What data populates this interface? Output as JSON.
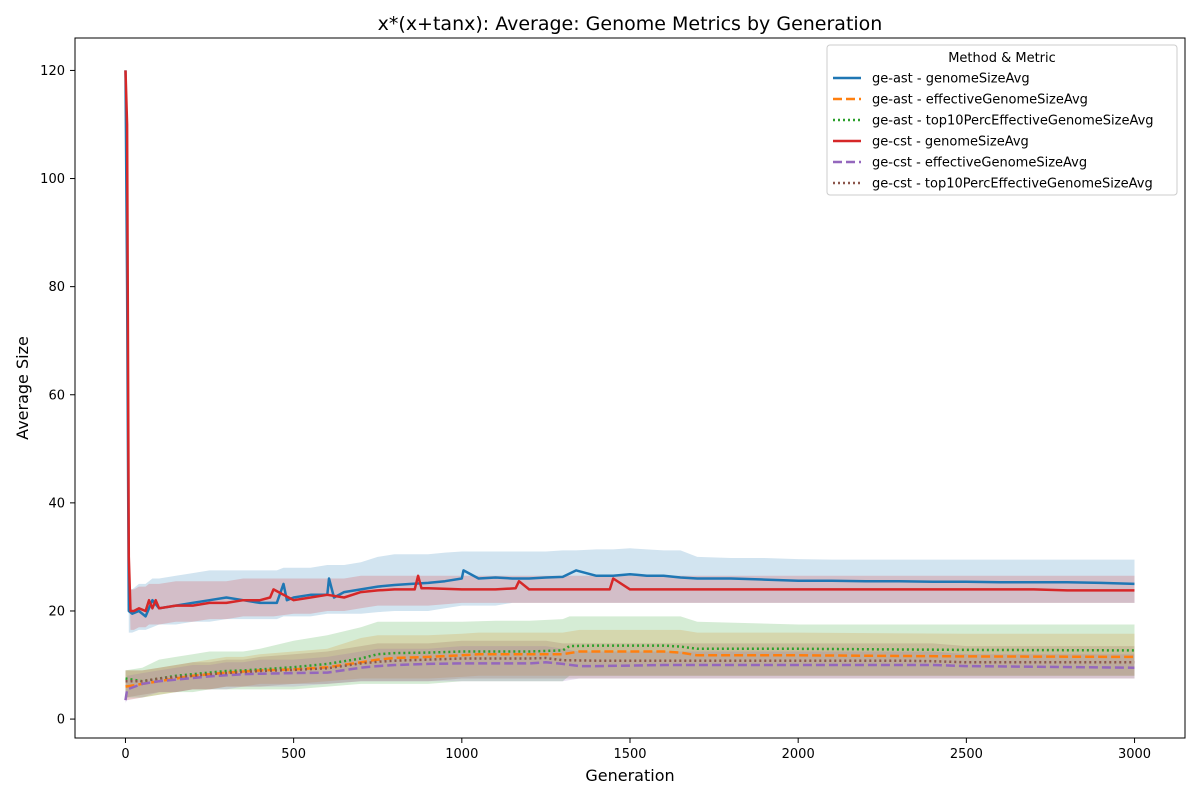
{
  "chart_data": {
    "type": "line",
    "title": "x*(x+tanx): Average: Genome Metrics by Generation",
    "xlabel": "Generation",
    "ylabel": "Average Size",
    "xlim": [
      -150,
      3150
    ],
    "ylim": [
      -3.5,
      126
    ],
    "xticks": [
      0,
      500,
      1000,
      1500,
      2000,
      2500,
      3000
    ],
    "yticks": [
      0,
      20,
      40,
      60,
      80,
      100,
      120
    ],
    "grid": false,
    "legend": {
      "title": "Method & Metric",
      "placement": "top-right"
    },
    "series": [
      {
        "name": "ge-ast - genomeSizeAvg",
        "color": "#1f77b4",
        "dash": "solid",
        "x": [
          0,
          5,
          10,
          20,
          40,
          60,
          80,
          100,
          150,
          200,
          250,
          300,
          350,
          400,
          450,
          470,
          480,
          500,
          550,
          600,
          605,
          620,
          650,
          700,
          750,
          800,
          850,
          900,
          950,
          1000,
          1005,
          1050,
          1100,
          1150,
          1200,
          1250,
          1300,
          1340,
          1400,
          1450,
          1500,
          1550,
          1600,
          1650,
          1700,
          1800,
          1900,
          2000,
          2100,
          2200,
          2300,
          2400,
          2500,
          2600,
          2700,
          2800,
          2900,
          3000
        ],
        "y": [
          120,
          80,
          20,
          19.5,
          20,
          19,
          22,
          20.5,
          21,
          21.5,
          22,
          22.5,
          22,
          21.5,
          21.5,
          25,
          22,
          22.5,
          23,
          23,
          26,
          22.5,
          23.5,
          24,
          24.5,
          24.8,
          25,
          25.2,
          25.5,
          26,
          27.5,
          26,
          26.2,
          26,
          26,
          26.2,
          26.3,
          27.5,
          26.5,
          26.5,
          26.8,
          26.5,
          26.5,
          26.2,
          26,
          26,
          25.8,
          25.6,
          25.6,
          25.5,
          25.5,
          25.4,
          25.4,
          25.3,
          25.3,
          25.3,
          25.2,
          25
        ],
        "band_upper": [
          120,
          80,
          24,
          24,
          25,
          25,
          26,
          26,
          26.5,
          27,
          27.5,
          27.5,
          27.5,
          27.5,
          27.5,
          28,
          28,
          28,
          28,
          28.5,
          28.5,
          28.5,
          28.5,
          29,
          30,
          30.5,
          30.5,
          30.5,
          30.8,
          31,
          31,
          31,
          31,
          31,
          31,
          31,
          31.2,
          31.2,
          31.4,
          31.4,
          31.6,
          31.4,
          31.2,
          31.2,
          30,
          29.8,
          29.8,
          29.6,
          29.5,
          29.5,
          29.5,
          29.5,
          29.5,
          29.5,
          29.5,
          29.5,
          29.5,
          29.5
        ],
        "band_lower": [
          120,
          80,
          16,
          16,
          16.5,
          16.5,
          17,
          17.5,
          17.5,
          18,
          18,
          18.5,
          18.5,
          18.5,
          18.5,
          19,
          19,
          19,
          19,
          19.5,
          19.5,
          19.5,
          19.5,
          19.5,
          19.8,
          20,
          20,
          20,
          20.5,
          21,
          21,
          21,
          21,
          21.5,
          21.5,
          21.5,
          21.5,
          21.5,
          21.5,
          21.5,
          21.5,
          21.5,
          21.5,
          21.5,
          21.5,
          21.5,
          21.5,
          21.5,
          21.5,
          21.5,
          21.5,
          21.5,
          21.5,
          21.5,
          21.5,
          21.5,
          21.5,
          21.5
        ]
      },
      {
        "name": "ge-ast - effectiveGenomeSizeAvg",
        "color": "#ff7f0e",
        "dash": "dashed",
        "x": [
          0,
          50,
          100,
          150,
          200,
          250,
          300,
          350,
          400,
          500,
          600,
          700,
          750,
          800,
          900,
          1000,
          1050,
          1100,
          1200,
          1300,
          1350,
          1400,
          1500,
          1600,
          1650,
          1700,
          2000,
          2500,
          3000
        ],
        "y": [
          6,
          6.5,
          7,
          7.5,
          8,
          8.3,
          8.6,
          8.8,
          9,
          9.2,
          9.6,
          10.5,
          11,
          11.3,
          11.5,
          11.8,
          12,
          12,
          12,
          12,
          12.5,
          12.5,
          12.5,
          12.5,
          12.3,
          11.8,
          11.8,
          11.6,
          11.5
        ],
        "band_upper": [
          9,
          9,
          9.5,
          10,
          10.5,
          11,
          11.5,
          11.5,
          12,
          12.5,
          13,
          15,
          15.5,
          15.5,
          15.5,
          15.8,
          16,
          16,
          16,
          16,
          16.5,
          16.5,
          16.5,
          16.5,
          16.5,
          16,
          16,
          15.8,
          15.8
        ],
        "band_lower": [
          3.5,
          4,
          4.5,
          5,
          5.5,
          5.5,
          6,
          6,
          6.5,
          6.5,
          7,
          7.5,
          7.5,
          7.5,
          7.5,
          7.8,
          8,
          8,
          8,
          8,
          8,
          8,
          8,
          8,
          8,
          8,
          8,
          8,
          8
        ]
      },
      {
        "name": "ge-ast - top10PercEffectiveGenomeSizeAvg",
        "color": "#2ca02c",
        "dash": "dotted",
        "x": [
          0,
          50,
          100,
          150,
          200,
          250,
          300,
          350,
          400,
          500,
          600,
          700,
          750,
          800,
          900,
          1000,
          1100,
          1200,
          1300,
          1320,
          1400,
          1500,
          1600,
          1650,
          1700,
          2000,
          2500,
          3000
        ],
        "y": [
          7.5,
          7,
          7.5,
          8,
          8.3,
          8.6,
          8.9,
          9,
          9.2,
          9.6,
          10.2,
          11.2,
          12,
          12.2,
          12.3,
          12.5,
          12.5,
          12.5,
          12.7,
          13.5,
          13.6,
          13.6,
          13.6,
          13.4,
          13,
          13,
          12.8,
          12.7
        ],
        "band_upper": [
          9,
          9.5,
          11,
          11.5,
          12,
          12.5,
          12.5,
          12.5,
          13,
          14.5,
          15.5,
          17,
          18,
          18,
          18,
          18,
          18.2,
          18.2,
          18.5,
          19,
          19,
          19,
          19,
          19,
          18,
          17.5,
          17.5,
          17.5
        ],
        "band_lower": [
          4,
          4,
          4.5,
          5,
          5,
          5.5,
          5.5,
          5.5,
          5.5,
          5.5,
          6,
          6.5,
          6.5,
          6.5,
          6.5,
          7,
          7,
          7,
          7,
          8,
          8,
          8,
          8,
          8,
          8,
          8,
          8,
          8
        ]
      },
      {
        "name": "ge-cst - genomeSizeAvg",
        "color": "#d62728",
        "dash": "solid",
        "x": [
          0,
          5,
          10,
          15,
          25,
          40,
          60,
          70,
          80,
          90,
          100,
          150,
          200,
          250,
          300,
          350,
          400,
          430,
          440,
          500,
          550,
          600,
          650,
          700,
          750,
          800,
          860,
          870,
          880,
          900,
          1000,
          1100,
          1160,
          1170,
          1200,
          1300,
          1400,
          1440,
          1450,
          1500,
          1600,
          1700,
          1800,
          1900,
          2000,
          2100,
          2200,
          2300,
          2400,
          2500,
          2600,
          2700,
          2800,
          2900,
          3000
        ],
        "y": [
          120,
          110,
          30,
          20,
          20,
          20.5,
          20,
          22,
          20.5,
          22,
          20.5,
          21,
          21,
          21.5,
          21.5,
          22,
          22,
          22.5,
          24,
          22,
          22.5,
          23,
          22.5,
          23.5,
          23.8,
          24,
          24,
          26.5,
          24.2,
          24.2,
          24,
          24,
          24.2,
          25.5,
          24,
          24,
          24,
          24,
          26,
          24,
          24,
          24,
          24,
          24,
          24,
          24,
          24,
          24,
          24,
          24,
          24,
          24,
          23.8,
          23.8,
          23.8
        ],
        "band_upper": [
          120,
          110,
          30,
          24,
          24,
          24.5,
          24.5,
          25,
          25,
          25,
          25,
          25.5,
          25.5,
          25.5,
          25.5,
          26,
          26,
          26,
          26,
          26,
          26,
          26,
          26,
          26.5,
          26.5,
          26.5,
          26.5,
          26.5,
          26.5,
          26.5,
          26.5,
          26.5,
          26.5,
          26.5,
          26.5,
          26.5,
          26.5,
          26.5,
          26.5,
          26.5,
          26.5,
          26.5,
          26.5,
          26.5,
          26.5,
          26.5,
          26.5,
          26.5,
          26.5,
          26.5,
          26.5,
          26.5,
          26.5,
          26.5,
          26.5
        ],
        "band_lower": [
          120,
          110,
          30,
          16.5,
          16.5,
          17,
          17,
          17.5,
          17.5,
          17.5,
          17.5,
          18,
          18,
          18.5,
          18.5,
          19,
          19,
          19,
          19,
          19.5,
          19.5,
          20,
          20,
          20.5,
          21,
          21,
          21,
          21,
          21,
          21,
          21.5,
          21.5,
          21.5,
          21.5,
          21.5,
          21.5,
          21.5,
          21.5,
          21.5,
          21.5,
          21.5,
          21.5,
          21.5,
          21.5,
          21.5,
          21.5,
          21.5,
          21.5,
          21.5,
          21.5,
          21.5,
          21.5,
          21.5,
          21.5,
          21.5
        ]
      },
      {
        "name": "ge-cst - effectiveGenomeSizeAvg",
        "color": "#9467bd",
        "dash": "dashed",
        "x": [
          0,
          5,
          50,
          100,
          150,
          200,
          250,
          300,
          350,
          400,
          500,
          600,
          700,
          750,
          800,
          900,
          1000,
          1100,
          1200,
          1250,
          1300,
          1350,
          1400,
          1500,
          1600,
          1700,
          2000,
          2300,
          2400,
          2500,
          3000
        ],
        "y": [
          3.5,
          5.5,
          6.5,
          7,
          7.3,
          7.6,
          7.9,
          8.1,
          8.3,
          8.4,
          8.5,
          8.6,
          9.5,
          9.8,
          10,
          10.2,
          10.3,
          10.3,
          10.3,
          10.5,
          10.2,
          9.8,
          9.8,
          9.9,
          10,
          10,
          10,
          10,
          10,
          9.8,
          9.5
        ],
        "band_upper": [
          6,
          8,
          8.5,
          9,
          9.5,
          10,
          10,
          10.5,
          10.5,
          11,
          11,
          11.5,
          12.5,
          13,
          13,
          13,
          13.5,
          13.5,
          13.5,
          13.5,
          13,
          12.5,
          12.5,
          12.5,
          12.5,
          12.5,
          12.5,
          12.5,
          12.5,
          12,
          12
        ],
        "band_lower": [
          3,
          3.5,
          4,
          5,
          5,
          5.5,
          5.5,
          5.5,
          6,
          6,
          6,
          6.5,
          7,
          7,
          7,
          7,
          7,
          7,
          7,
          7,
          7,
          7.5,
          7.5,
          7.5,
          7.5,
          7.5,
          7.5,
          7.5,
          7.5,
          7.5,
          7.5
        ]
      },
      {
        "name": "ge-cst - top10PercEffectiveGenomeSizeAvg",
        "color": "#8c564b",
        "dash": "dotted",
        "x": [
          0,
          50,
          100,
          150,
          200,
          250,
          300,
          350,
          400,
          500,
          600,
          700,
          750,
          800,
          900,
          1000,
          1100,
          1200,
          1250,
          1300,
          1400,
          1500,
          1600,
          1700,
          2000,
          2300,
          2400,
          2500,
          3000
        ],
        "y": [
          7,
          7,
          7.5,
          7.8,
          8,
          8.3,
          8.5,
          8.7,
          8.9,
          9.1,
          9.4,
          10.3,
          10.6,
          10.8,
          11,
          11.2,
          11.2,
          11.2,
          11.3,
          10.9,
          10.8,
          10.8,
          10.8,
          10.8,
          10.8,
          10.8,
          10.7,
          10.5,
          10.5
        ],
        "band_upper": [
          9,
          9,
          9.5,
          10,
          10.5,
          10.5,
          11,
          11,
          11.5,
          12,
          12.5,
          13.5,
          14,
          14,
          14,
          14.5,
          14.5,
          14.5,
          14.5,
          14,
          14,
          14,
          14,
          14,
          14,
          14,
          14,
          13.5,
          13.5
        ],
        "band_lower": [
          4,
          4.5,
          5,
          5,
          5.5,
          5.5,
          6,
          6,
          6,
          6.5,
          6.5,
          7,
          7,
          7,
          7,
          7.5,
          7.5,
          7.5,
          7.5,
          7.5,
          7.5,
          7.5,
          7.5,
          7.5,
          7.5,
          7.5,
          7.5,
          7.5,
          7.5
        ]
      }
    ]
  }
}
